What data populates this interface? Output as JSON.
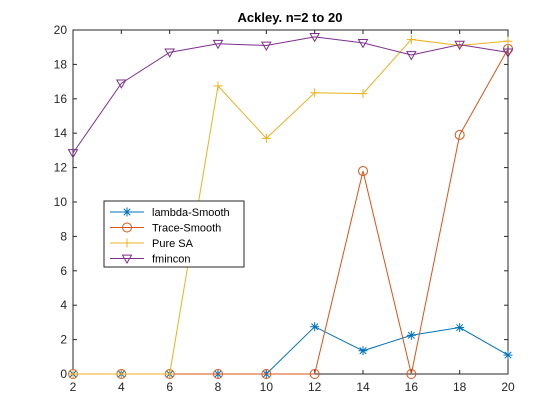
{
  "chart_data": {
    "type": "line",
    "title": "Ackley. n=2 to 20",
    "xlabel": "",
    "ylabel": "",
    "xlim": [
      2,
      20
    ],
    "ylim": [
      0,
      20
    ],
    "xticks": [
      2,
      4,
      6,
      8,
      10,
      12,
      14,
      16,
      18,
      20
    ],
    "yticks": [
      0,
      2,
      4,
      6,
      8,
      10,
      12,
      14,
      16,
      18,
      20
    ],
    "grid": false,
    "legend_position": "left",
    "x": [
      2,
      4,
      6,
      8,
      10,
      12,
      14,
      16,
      18,
      20
    ],
    "series": [
      {
        "name": "lambda-Smooth",
        "color": "#0072BD",
        "marker": "asterisk",
        "values": [
          0,
          0,
          0,
          0,
          0,
          2.75,
          1.35,
          2.25,
          2.7,
          1.1
        ]
      },
      {
        "name": "Trace-Smooth",
        "color": "#D95319",
        "marker": "circle",
        "values": [
          0,
          0,
          0,
          0,
          0,
          0,
          11.8,
          0,
          13.9,
          18.9
        ]
      },
      {
        "name": "Pure SA",
        "color": "#EDB120",
        "marker": "plus",
        "values": [
          0,
          0,
          0,
          16.75,
          13.7,
          16.35,
          16.3,
          19.45,
          19.1,
          19.35
        ]
      },
      {
        "name": "fmincon",
        "color": "#7E2F8E",
        "marker": "triangle-down",
        "values": [
          12.85,
          16.9,
          18.7,
          19.2,
          19.1,
          19.6,
          19.25,
          18.55,
          19.15,
          18.7
        ]
      }
    ]
  }
}
